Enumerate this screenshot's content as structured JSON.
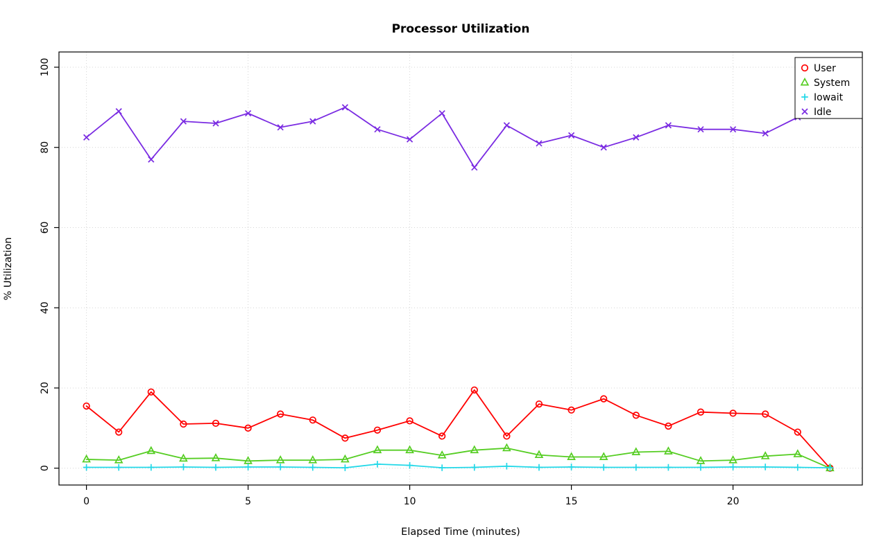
{
  "chart_data": {
    "type": "line",
    "title": "Processor Utilization",
    "xlabel": "Elapsed Time (minutes)",
    "ylabel": "% Utilization",
    "x": [
      0,
      1,
      2,
      3,
      4,
      5,
      6,
      7,
      8,
      9,
      10,
      11,
      12,
      13,
      14,
      15,
      16,
      17,
      18,
      19,
      20,
      21,
      22,
      23
    ],
    "series": [
      {
        "name": "User",
        "color": "#FF0000",
        "marker": "circle",
        "values": [
          15.5,
          9,
          19,
          11,
          11.2,
          10,
          13.5,
          12,
          7.5,
          9.5,
          11.8,
          8,
          19.5,
          8,
          16,
          14.5,
          17.3,
          13.2,
          10.5,
          14,
          13.7,
          13.5,
          9,
          0
        ]
      },
      {
        "name": "System",
        "color": "#55CD22",
        "marker": "triangle",
        "values": [
          2.2,
          2,
          4.3,
          2.4,
          2.5,
          1.8,
          2,
          2,
          2.2,
          4.5,
          4.5,
          3.2,
          4.5,
          5,
          3.3,
          2.8,
          2.8,
          4,
          4.2,
          1.8,
          2,
          3,
          3.5,
          0
        ]
      },
      {
        "name": "Iowait",
        "color": "#22D8E8",
        "marker": "plus",
        "values": [
          0.2,
          0.2,
          0.2,
          0.3,
          0.2,
          0.3,
          0.3,
          0.2,
          0.1,
          1.0,
          0.7,
          0.1,
          0.2,
          0.5,
          0.2,
          0.3,
          0.2,
          0.2,
          0.2,
          0.2,
          0.3,
          0.3,
          0.2,
          0.1
        ]
      },
      {
        "name": "Idle",
        "color": "#7A2BE2",
        "marker": "x",
        "values": [
          82.5,
          89,
          77,
          86.5,
          86,
          88.5,
          85,
          86.5,
          90,
          84.5,
          82,
          88.5,
          75,
          85.5,
          81,
          83,
          80,
          82.5,
          85.5,
          84.5,
          84.5,
          83.5,
          87.5,
          100
        ]
      }
    ],
    "xticks": [
      0,
      5,
      10,
      15,
      20
    ],
    "yticks": [
      0,
      20,
      40,
      60,
      80,
      100
    ],
    "xlim": [
      -0.85,
      24.0
    ],
    "ylim": [
      -4.2,
      103.8
    ],
    "grid": true,
    "grid_color": "#D4D4D4",
    "axis_color": "#000000",
    "legend": {
      "position": "topright",
      "labels": [
        "User",
        "System",
        "Iowait",
        "Idle"
      ]
    }
  }
}
